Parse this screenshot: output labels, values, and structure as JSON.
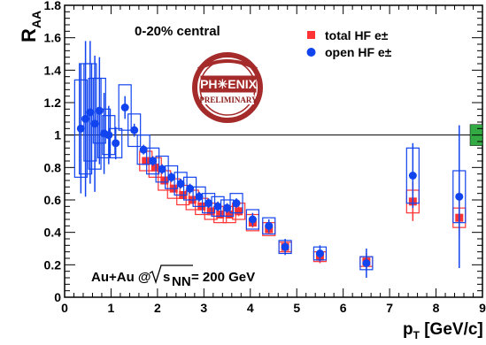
{
  "chart_data": {
    "type": "scatter",
    "xlabel": {
      "main": "p",
      "sub": "T",
      "unit": " [GeV/c]"
    },
    "ylabel": {
      "main": "R",
      "sub": "AA"
    },
    "xlim": [
      0,
      9
    ],
    "ylim": [
      0,
      1.8
    ],
    "x_ticks": [
      "0",
      "1",
      "2",
      "3",
      "4",
      "5",
      "6",
      "7",
      "8",
      "9"
    ],
    "y_ticks": [
      "0",
      "0.2",
      "0.4",
      "0.6",
      "0.8",
      "1",
      "1.2",
      "1.4",
      "1.6",
      "1.8"
    ],
    "reference_line": 1.0,
    "centrality_label": "0-20% central",
    "system_label": {
      "prefix": "Au+Au @",
      "sqrt_var": "s",
      "sqrt_sub": "NN",
      "suffix": " = 200 GeV"
    },
    "logo": {
      "text": "PH✳ENIX",
      "sub": "PRELIMINARY"
    },
    "series": [
      {
        "name": "total HF e±",
        "color": "#ff3333",
        "marker": "square",
        "points": [
          {
            "x": 1.75,
            "y": 0.84,
            "err": 0.02,
            "sys": 0.06
          },
          {
            "x": 1.95,
            "y": 0.8,
            "err": 0.02,
            "sys": 0.06
          },
          {
            "x": 2.15,
            "y": 0.72,
            "err": 0.02,
            "sys": 0.06
          },
          {
            "x": 2.35,
            "y": 0.67,
            "err": 0.02,
            "sys": 0.06
          },
          {
            "x": 2.55,
            "y": 0.63,
            "err": 0.02,
            "sys": 0.06
          },
          {
            "x": 2.75,
            "y": 0.6,
            "err": 0.02,
            "sys": 0.06
          },
          {
            "x": 2.95,
            "y": 0.56,
            "err": 0.02,
            "sys": 0.05
          },
          {
            "x": 3.15,
            "y": 0.53,
            "err": 0.02,
            "sys": 0.05
          },
          {
            "x": 3.35,
            "y": 0.51,
            "err": 0.02,
            "sys": 0.05
          },
          {
            "x": 3.55,
            "y": 0.51,
            "err": 0.02,
            "sys": 0.05
          },
          {
            "x": 3.75,
            "y": 0.53,
            "err": 0.03,
            "sys": 0.05
          },
          {
            "x": 4.05,
            "y": 0.46,
            "err": 0.03,
            "sys": 0.05
          },
          {
            "x": 4.4,
            "y": 0.42,
            "err": 0.03,
            "sys": 0.04
          },
          {
            "x": 4.75,
            "y": 0.31,
            "err": 0.03,
            "sys": 0.03
          },
          {
            "x": 5.5,
            "y": 0.25,
            "err": 0.04,
            "sys": 0.03
          },
          {
            "x": 6.5,
            "y": 0.22,
            "err": 0.05,
            "sys": 0.03
          },
          {
            "x": 7.5,
            "y": 0.59,
            "err": 0.12,
            "sys": 0.07
          },
          {
            "x": 8.5,
            "y": 0.49,
            "err": 0.12,
            "sys": 0.06
          }
        ]
      },
      {
        "name": "open HF e±",
        "color": "#1144ee",
        "marker": "circle",
        "points": [
          {
            "x": 0.35,
            "y": 1.04,
            "err": 0.4,
            "sys": 0.3
          },
          {
            "x": 0.45,
            "y": 1.1,
            "err": 0.48,
            "sys": 0.34
          },
          {
            "x": 0.55,
            "y": 1.14,
            "err": 0.44,
            "sys": 0.3
          },
          {
            "x": 0.65,
            "y": 1.07,
            "err": 0.42,
            "sys": 0.28
          },
          {
            "x": 0.75,
            "y": 1.15,
            "err": 0.33,
            "sys": 0.2
          },
          {
            "x": 0.85,
            "y": 1.01,
            "err": 0.25,
            "sys": 0.15
          },
          {
            "x": 0.95,
            "y": 1.0,
            "err": 0.18,
            "sys": 0.12
          },
          {
            "x": 1.1,
            "y": 0.95,
            "err": 0.1,
            "sys": 0.09
          },
          {
            "x": 1.3,
            "y": 1.17,
            "err": 0.07,
            "sys": 0.14
          },
          {
            "x": 1.5,
            "y": 1.03,
            "err": 0.04,
            "sys": 0.1
          },
          {
            "x": 1.7,
            "y": 0.91,
            "err": 0.03,
            "sys": 0.09
          },
          {
            "x": 1.9,
            "y": 0.84,
            "err": 0.03,
            "sys": 0.08
          },
          {
            "x": 2.1,
            "y": 0.79,
            "err": 0.03,
            "sys": 0.08
          },
          {
            "x": 2.3,
            "y": 0.74,
            "err": 0.03,
            "sys": 0.07
          },
          {
            "x": 2.5,
            "y": 0.7,
            "err": 0.03,
            "sys": 0.07
          },
          {
            "x": 2.7,
            "y": 0.67,
            "err": 0.03,
            "sys": 0.07
          },
          {
            "x": 2.9,
            "y": 0.62,
            "err": 0.03,
            "sys": 0.06
          },
          {
            "x": 3.1,
            "y": 0.58,
            "err": 0.03,
            "sys": 0.06
          },
          {
            "x": 3.3,
            "y": 0.56,
            "err": 0.03,
            "sys": 0.06
          },
          {
            "x": 3.5,
            "y": 0.55,
            "err": 0.03,
            "sys": 0.05
          },
          {
            "x": 3.7,
            "y": 0.58,
            "err": 0.03,
            "sys": 0.06
          },
          {
            "x": 4.05,
            "y": 0.48,
            "err": 0.04,
            "sys": 0.06
          },
          {
            "x": 4.4,
            "y": 0.44,
            "err": 0.04,
            "sys": 0.05
          },
          {
            "x": 4.75,
            "y": 0.31,
            "err": 0.05,
            "sys": 0.04
          },
          {
            "x": 5.5,
            "y": 0.27,
            "err": 0.05,
            "sys": 0.04
          },
          {
            "x": 6.5,
            "y": 0.21,
            "err": 0.09,
            "sys": 0.04
          },
          {
            "x": 7.5,
            "y": 0.75,
            "err": 0.2,
            "sys": 0.17
          },
          {
            "x": 8.5,
            "y": 0.62,
            "err": 0.44,
            "sys": 0.16
          }
        ]
      }
    ],
    "norm_uncertainty": {
      "center": 1.0,
      "half_height": 0.065,
      "color": "#33aa44"
    }
  }
}
